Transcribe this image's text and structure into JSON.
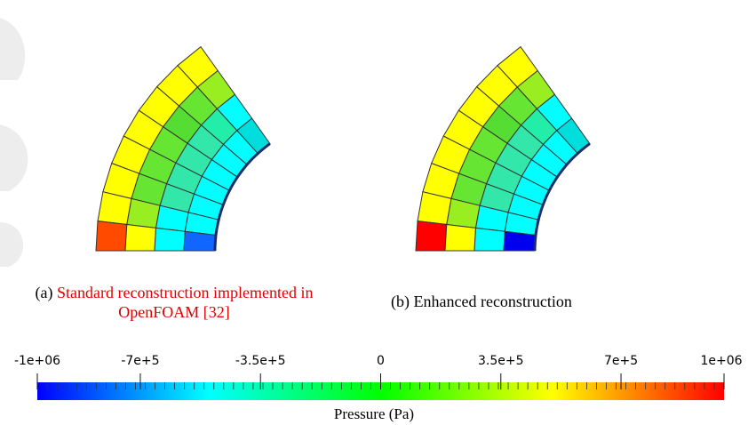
{
  "panels": [
    {
      "id": "a",
      "caption_prefix": "(a)",
      "caption_line1": "Standard reconstruction implemented in",
      "caption_line2": "OpenFOAM [32]",
      "cells": [
        [
          "#ffff00",
          "#99ee22",
          "#00ffff",
          "#00dddd"
        ],
        [
          "#ffff00",
          "#66e633",
          "#22eeaa",
          "#00ffff"
        ],
        [
          "#ffff00",
          "#55dd33",
          "#33e6aa",
          "#00ffff"
        ],
        [
          "#ffff00",
          "#66e633",
          "#33e6aa",
          "#00ffff"
        ],
        [
          "#ffff00",
          "#66e633",
          "#33e6aa",
          "#00ffff"
        ],
        [
          "#ffff00",
          "#66e633",
          "#33e6aa",
          "#00ffff"
        ],
        [
          "#ffff00",
          "#99ee22",
          "#00ffff",
          "#00ffff"
        ],
        [
          "#ff4a00",
          "#ffff00",
          "#00ffff",
          "#1166ff"
        ]
      ]
    },
    {
      "id": "b",
      "caption_prefix": "(b)",
      "caption_line1": "Enhanced reconstruction",
      "cells": [
        [
          "#ffff00",
          "#99ee22",
          "#00ffff",
          "#00dddd"
        ],
        [
          "#ffff00",
          "#66e633",
          "#22eeaa",
          "#00ffff"
        ],
        [
          "#ffff00",
          "#55dd33",
          "#33e6aa",
          "#00ffff"
        ],
        [
          "#ffff00",
          "#66e633",
          "#33e6aa",
          "#00ffff"
        ],
        [
          "#ffff00",
          "#66e633",
          "#33e6aa",
          "#00ffff"
        ],
        [
          "#ffff00",
          "#66e633",
          "#33e6aa",
          "#00ffff"
        ],
        [
          "#ffff00",
          "#99ee22",
          "#00ffff",
          "#00ffff"
        ],
        [
          "#ff0000",
          "#ffff00",
          "#00ffff",
          "#0000ee"
        ]
      ]
    }
  ],
  "colorbar": {
    "title": "Pressure (Pa)",
    "min": -1000000,
    "max": 1000000,
    "ticks": [
      {
        "value": -1000000,
        "label": "-1e+06"
      },
      {
        "value": -700000,
        "label": "-7e+5"
      },
      {
        "value": -350000,
        "label": "-3.5e+5"
      },
      {
        "value": 0,
        "label": "0"
      },
      {
        "value": 350000,
        "label": "3.5e+5"
      },
      {
        "value": 700000,
        "label": "7e+5"
      },
      {
        "value": 1000000,
        "label": "1e+06"
      }
    ],
    "colors": [
      "#0000ff",
      "#00ffff",
      "#00ff00",
      "#ffff00",
      "#ff0000"
    ]
  }
}
